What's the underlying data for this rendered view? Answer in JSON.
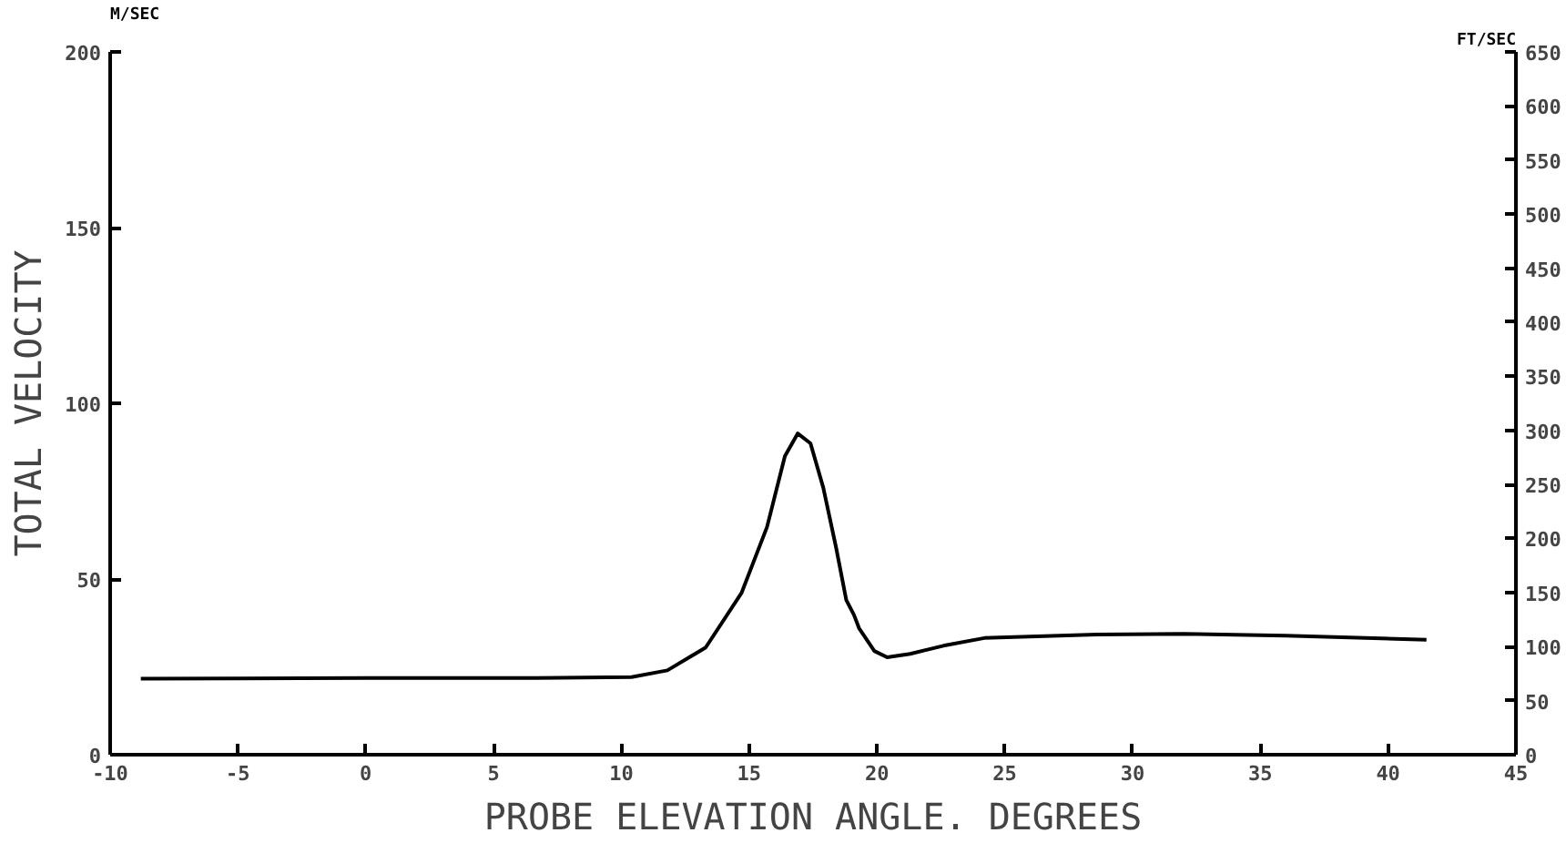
{
  "chart_data": {
    "type": "line",
    "xlabel": "PROBE ELEVATION ANGLE. DEGREES",
    "ylabel": "TOTAL VELOCITY",
    "y2label": "FT/SEC",
    "annotations": [
      "M/SEC"
    ],
    "xlim": [
      -10,
      45
    ],
    "xticks": [
      -10,
      -5,
      0,
      5,
      10,
      15,
      20,
      25,
      30,
      35,
      40,
      45
    ],
    "ylim": [
      0,
      200
    ],
    "yticks": [
      0,
      50,
      100,
      150,
      200
    ],
    "y2lim": [
      0,
      650
    ],
    "y2ticks": [
      0,
      50,
      100,
      150,
      200,
      250,
      300,
      350,
      400,
      450,
      500,
      550,
      600,
      650
    ],
    "grid": false,
    "marker": "none",
    "line_style": "solid",
    "series": [
      {
        "color": "#000000",
        "x": [
          -8.8,
          -5,
          0,
          5,
          6.7,
          10.4,
          11.8,
          13.3,
          14.7,
          15.7,
          16.4,
          16.9,
          17.4,
          17.9,
          18.4,
          18.8,
          19.1,
          19.3,
          19.9,
          20.4,
          21.3,
          22.6,
          24.2,
          28.6,
          32,
          36,
          41.5
        ],
        "values": [
          21.6,
          21.7,
          21.8,
          21.8,
          21.8,
          22.1,
          24,
          30.5,
          46,
          64.8,
          85,
          91.4,
          88.6,
          76,
          59,
          44,
          39.8,
          36,
          29.5,
          27.7,
          28.7,
          31,
          33.2,
          34.2,
          34.4,
          33.9,
          32.7
        ]
      }
    ]
  }
}
